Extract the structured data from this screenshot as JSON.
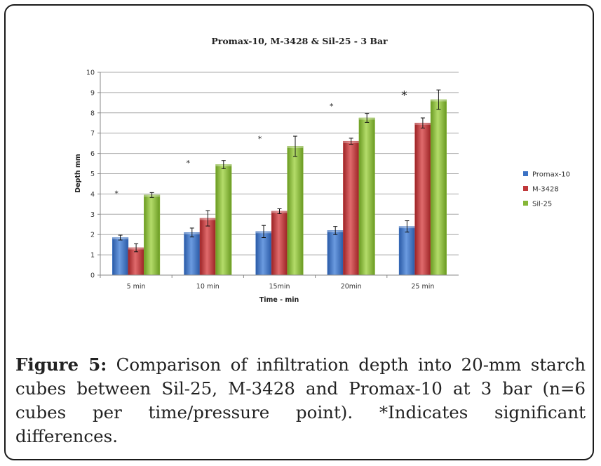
{
  "figure": {
    "label": "Figure 5:",
    "text": " Comparison of infiltration depth into 20-mm starch cubes between Sil-25, M-3428 and Promax-10 at 3 bar (n=6 cubes per time/pressure point). *Indicates significant differences."
  },
  "chart_data": {
    "type": "bar",
    "title": "Promax-10, M-3428 & Sil-25 - 3 Bar",
    "xlabel": "Time - min",
    "ylabel": "Depth mm",
    "ylim": [
      0,
      10
    ],
    "yticks": [
      0,
      1,
      2,
      3,
      4,
      5,
      6,
      7,
      8,
      9,
      10
    ],
    "grid": true,
    "legend_position": "right",
    "categories": [
      "5 min",
      "10 min",
      "15min",
      "20min",
      "25 min"
    ],
    "series": [
      {
        "name": "Promax-10",
        "color": "#3b72c4",
        "values": [
          1.85,
          2.1,
          2.15,
          2.2,
          2.4
        ],
        "errors": [
          0.12,
          0.22,
          0.3,
          0.2,
          0.28
        ]
      },
      {
        "name": "M-3428",
        "color": "#c0383a",
        "values": [
          1.35,
          2.8,
          3.15,
          6.6,
          7.5
        ],
        "errors": [
          0.2,
          0.38,
          0.12,
          0.15,
          0.25
        ]
      },
      {
        "name": "Sil-25",
        "color": "#86b637",
        "values": [
          3.95,
          5.45,
          6.35,
          7.75,
          8.65
        ],
        "errors": [
          0.12,
          0.2,
          0.5,
          0.22,
          0.48
        ]
      }
    ],
    "annotations": [
      {
        "text": "*",
        "category": 0,
        "y": 4.1
      },
      {
        "text": "*",
        "category": 1,
        "y": 5.6
      },
      {
        "text": "*",
        "category": 2,
        "y": 6.8
      },
      {
        "text": "*",
        "category": 3,
        "y": 8.4
      },
      {
        "text": "*",
        "category": 4,
        "y": 8.95
      }
    ]
  }
}
